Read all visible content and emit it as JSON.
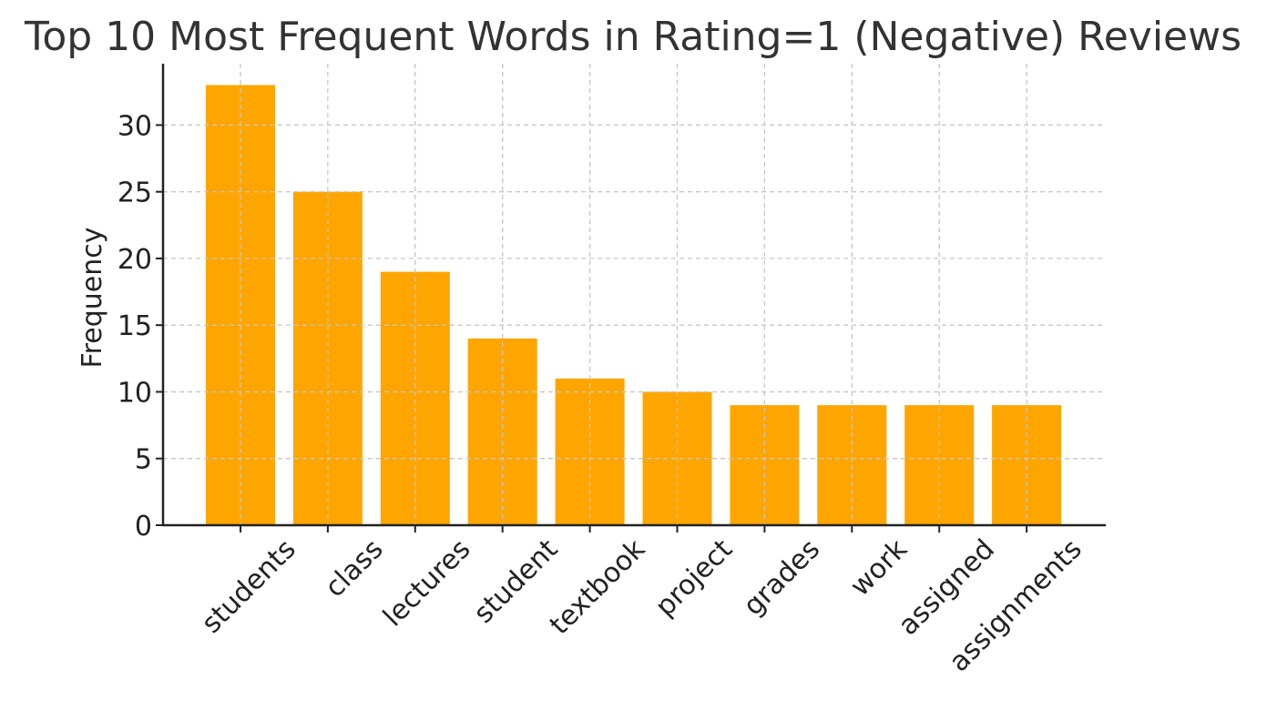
{
  "chart_data": {
    "type": "bar",
    "title": "Top 10 Most Frequent Words in Rating=1 (Negative) Reviews",
    "xlabel": "",
    "ylabel": "Frequency",
    "categories": [
      "students",
      "class",
      "lectures",
      "student",
      "textbook",
      "project",
      "grades",
      "work",
      "assigned",
      "assignments"
    ],
    "values": [
      33,
      25,
      19,
      14,
      11,
      10,
      9,
      9,
      9,
      9
    ],
    "ylim": [
      0,
      34.6
    ],
    "yticks": [
      0,
      5,
      10,
      15,
      20,
      25,
      30
    ],
    "grid": true,
    "bar_color": "#FFA500"
  }
}
